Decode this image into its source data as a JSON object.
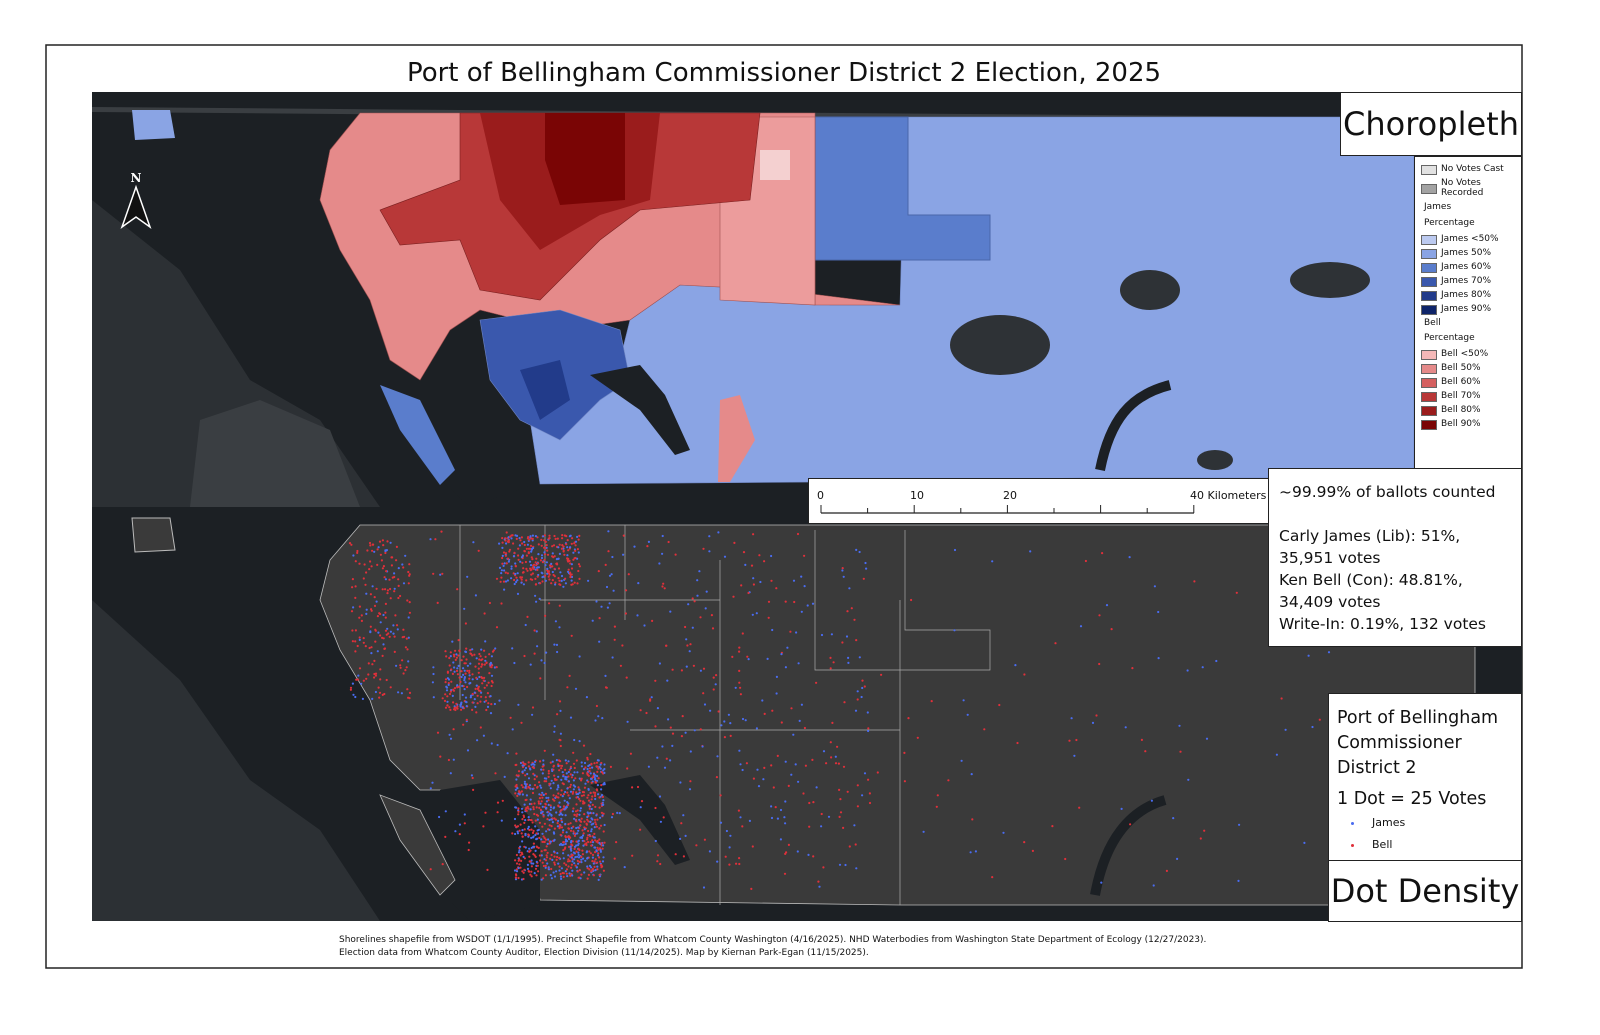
{
  "title": "Port of Bellingham Commissioner District 2 Election, 2025",
  "panels": {
    "top": "Choropleth",
    "bottom": "Dot Density"
  },
  "north_arrow": "N",
  "legend": {
    "items": [
      {
        "label": "No Votes Cast",
        "color": "#e2e2e2"
      },
      {
        "label": "No Votes Recorded",
        "color": "#a3a3a3"
      }
    ],
    "groups": [
      {
        "heading": "James",
        "subheading": "Percentage",
        "items": [
          {
            "label": "James <50%",
            "color": "#bccaf0"
          },
          {
            "label": "James 50%",
            "color": "#8aa4e4"
          },
          {
            "label": "James 60%",
            "color": "#5a7dcc"
          },
          {
            "label": "James 70%",
            "color": "#3a58ad"
          },
          {
            "label": "James 80%",
            "color": "#223b8a"
          },
          {
            "label": "James 90%",
            "color": "#0e2469"
          }
        ]
      },
      {
        "heading": "Bell",
        "subheading": "Percentage",
        "items": [
          {
            "label": "Bell <50%",
            "color": "#f4b8b8"
          },
          {
            "label": "Bell 50%",
            "color": "#e58a8a"
          },
          {
            "label": "Bell 60%",
            "color": "#d46060"
          },
          {
            "label": "Bell 70%",
            "color": "#b83838"
          },
          {
            "label": "Bell 80%",
            "color": "#9a1c1c"
          },
          {
            "label": "Bell 90%",
            "color": "#7a0505"
          }
        ]
      }
    ]
  },
  "scale_bar": {
    "labels": [
      "0",
      "10",
      "20",
      "40 Kilometers"
    ]
  },
  "results": {
    "lines": [
      "~99.99% of ballots counted",
      "Carly James (Lib): 51%, 35,951 votes",
      "Ken Bell (Con): 48.81%, 34,409 votes",
      "Write-In: 0.19%, 132 votes"
    ]
  },
  "dot_legend": {
    "title": "Port of Bellingham Commissioner District 2",
    "ratio": "1 Dot = 25 Votes",
    "items": [
      {
        "label": "James",
        "color": "#4a6cf0"
      },
      {
        "label": "Bell",
        "color": "#e0303a"
      }
    ]
  },
  "footer": [
    "Shorelines shapefile from WSDOT (1/1/1995). Precinct Shapefile from Whatcom County Washington (4/16/2025). NHD Waterbodies from Washington State Department of Ecology (12/27/2023).",
    "Election data from Whatcom County Auditor, Election Division (11/14/2025). Map by Kiernan Park-Egan (11/15/2025)."
  ]
}
